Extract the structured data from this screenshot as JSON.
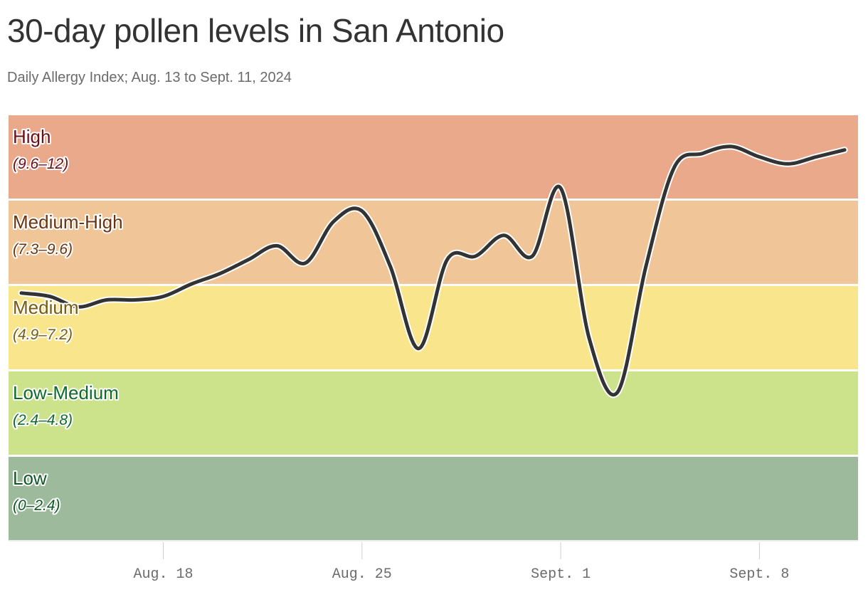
{
  "title": "30-day pollen levels in San Antonio",
  "subtitle": "Daily Allergy Index; Aug. 13 to Sept. 11, 2024",
  "chart_data": {
    "type": "line",
    "title": "30-day pollen levels in San Antonio",
    "subtitle": "Daily Allergy Index; Aug. 13 to Sept. 11, 2024",
    "xlabel": "",
    "ylabel": "",
    "x_range": [
      "2024-08-13",
      "2024-09-11"
    ],
    "ylim": [
      0,
      12
    ],
    "grid": false,
    "legend": "none",
    "line_color": "#333333",
    "bands": [
      {
        "label": "High",
        "range": "(9.6–12)",
        "min": 9.6,
        "max": 12,
        "color": "#eba98c",
        "text_color": "#6b0f1a"
      },
      {
        "label": "Medium-High",
        "range": "(7.3–9.6)",
        "min": 7.2,
        "max": 9.6,
        "color": "#f0c698",
        "text_color": "#6b3410"
      },
      {
        "label": "Medium",
        "range": "(4.9–7.2)",
        "min": 4.8,
        "max": 7.2,
        "color": "#f8e58c",
        "text_color": "#7a5a0f"
      },
      {
        "label": "Low-Medium",
        "range": "(2.4–4.8)",
        "min": 2.4,
        "max": 4.8,
        "color": "#cde38b",
        "text_color": "#0d6b2b"
      },
      {
        "label": "Low",
        "range": "(0–2.4)",
        "min": 0,
        "max": 2.4,
        "color": "#9dba9c",
        "text_color": "#0d5a24"
      }
    ],
    "x_ticks": [
      {
        "label": "Aug. 18",
        "date": "2024-08-18"
      },
      {
        "label": "Aug. 25",
        "date": "2024-08-25"
      },
      {
        "label": "Sept. 1",
        "date": "2024-09-01"
      },
      {
        "label": "Sept. 8",
        "date": "2024-09-08"
      }
    ],
    "series": [
      {
        "values": [
          {
            "x": "2024-08-13",
            "y": 7.0
          },
          {
            "x": "2024-08-14",
            "y": 6.9
          },
          {
            "x": "2024-08-15",
            "y": 6.6
          },
          {
            "x": "2024-08-16",
            "y": 6.8
          },
          {
            "x": "2024-08-17",
            "y": 6.8
          },
          {
            "x": "2024-08-18",
            "y": 6.9
          },
          {
            "x": "2024-08-19",
            "y": 7.2
          },
          {
            "x": "2024-08-20",
            "y": 7.5
          },
          {
            "x": "2024-08-21",
            "y": 7.9
          },
          {
            "x": "2024-08-22",
            "y": 8.3
          },
          {
            "x": "2024-08-23",
            "y": 7.8
          },
          {
            "x": "2024-08-24",
            "y": 9.0
          },
          {
            "x": "2024-08-25",
            "y": 9.3
          },
          {
            "x": "2024-08-26",
            "y": 7.7
          },
          {
            "x": "2024-08-27",
            "y": 5.4
          },
          {
            "x": "2024-08-28",
            "y": 7.9
          },
          {
            "x": "2024-08-29",
            "y": 8.0
          },
          {
            "x": "2024-08-30",
            "y": 8.6
          },
          {
            "x": "2024-08-31",
            "y": 8.0
          },
          {
            "x": "2024-09-01",
            "y": 9.9
          },
          {
            "x": "2024-09-02",
            "y": 5.7
          },
          {
            "x": "2024-09-03",
            "y": 4.2
          },
          {
            "x": "2024-09-04",
            "y": 7.7
          },
          {
            "x": "2024-09-05",
            "y": 10.5
          },
          {
            "x": "2024-09-06",
            "y": 10.9
          },
          {
            "x": "2024-09-07",
            "y": 11.1
          },
          {
            "x": "2024-09-08",
            "y": 10.8
          },
          {
            "x": "2024-09-09",
            "y": 10.6
          },
          {
            "x": "2024-09-10",
            "y": 10.8
          },
          {
            "x": "2024-09-11",
            "y": 11.0
          }
        ]
      }
    ]
  }
}
